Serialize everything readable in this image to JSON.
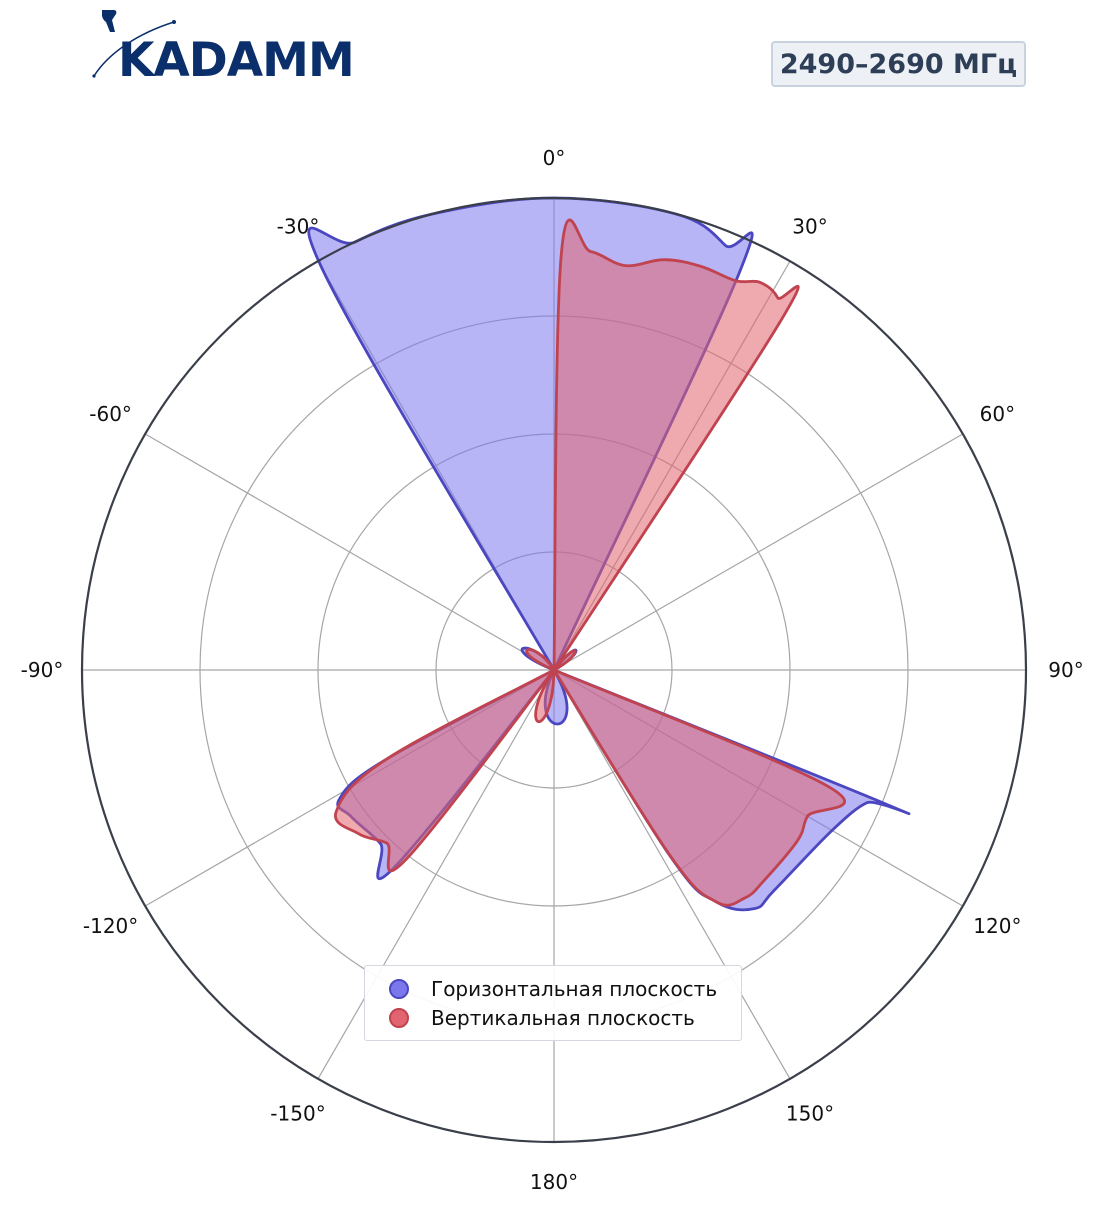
{
  "brand": {
    "logo_text": "KADAMM"
  },
  "badge": {
    "frequency": "2490–2690 МГц"
  },
  "colors": {
    "horizontal": "#4b47c0",
    "horizontal_fill": "#7b78ec",
    "vertical": "#c0434f",
    "vertical_fill": "#e26470",
    "grid": "#a6a6a6",
    "frame": "#3a3f4a"
  },
  "chart_data": {
    "type": "polar-area",
    "theta_unit": "deg",
    "theta_zero": "top",
    "theta_direction": "clockwise",
    "theta_ticks": [
      0,
      30,
      60,
      90,
      120,
      150,
      180,
      -150,
      -120,
      -90,
      -60,
      -30
    ],
    "theta_tick_labels": [
      "0°",
      "30°",
      "60°",
      "90°",
      "120°",
      "150°",
      "180°",
      "-150°",
      "-120°",
      "-90°",
      "-60°",
      "-30°"
    ],
    "r_range": [
      0,
      1
    ],
    "r_grid": [
      0.25,
      0.5,
      0.75,
      1.0
    ],
    "r_tick_labels_visible": false,
    "grid": true,
    "legend_position": "bottom-center",
    "series": [
      {
        "name": "Горизонтальная плоскость",
        "color_key": "horizontal",
        "points": [
          [
            -30,
            0.0
          ],
          [
            -30,
            0.985
          ],
          [
            -25,
            1.0
          ],
          [
            -15,
            1.0
          ],
          [
            0,
            1.0
          ],
          [
            15,
            1.0
          ],
          [
            22,
            0.97
          ],
          [
            25,
            0.93
          ],
          [
            28,
            0.0
          ],
          [
            105,
            0.0
          ],
          [
            112,
            0.76
          ],
          [
            113,
            0.72
          ],
          [
            120,
            0.68
          ],
          [
            135,
            0.66
          ],
          [
            140,
            0.66
          ],
          [
            145,
            0.6
          ],
          [
            148,
            0.47
          ],
          [
            155,
            0.0
          ],
          [
            -145,
            0.0
          ],
          [
            -141,
            0.54
          ],
          [
            -135,
            0.52
          ],
          [
            -126,
            0.53
          ],
          [
            -121,
            0.53
          ],
          [
            -118,
            0.4
          ],
          [
            -115,
            0.0
          ]
        ]
      },
      {
        "name": "Вертикальная плоскость",
        "color_key": "vertical",
        "points": [
          [
            0.5,
            0.0
          ],
          [
            1,
            0.88
          ],
          [
            5,
            0.89
          ],
          [
            10,
            0.87
          ],
          [
            15,
            0.9
          ],
          [
            20,
            0.91
          ],
          [
            25,
            0.91
          ],
          [
            28,
            0.93
          ],
          [
            31,
            0.92
          ],
          [
            33,
            0.88
          ],
          [
            38,
            0.0
          ],
          [
            105,
            0.0
          ],
          [
            113,
            0.63
          ],
          [
            120,
            0.62
          ],
          [
            125,
            0.63
          ],
          [
            135,
            0.63
          ],
          [
            140,
            0.63
          ],
          [
            145,
            0.6
          ],
          [
            148,
            0.46
          ],
          [
            155,
            0.0
          ],
          [
            -147,
            0.0
          ],
          [
            -142,
            0.51
          ],
          [
            -136,
            0.51
          ],
          [
            -130,
            0.54
          ],
          [
            -123,
            0.55
          ],
          [
            -118,
            0.4
          ],
          [
            -114,
            0.0
          ]
        ]
      }
    ]
  }
}
